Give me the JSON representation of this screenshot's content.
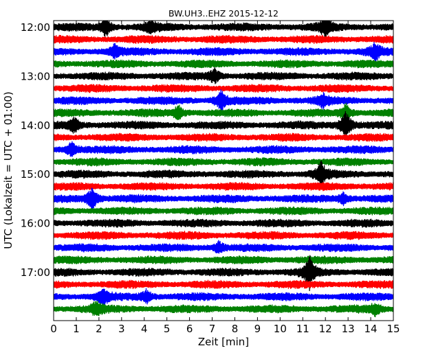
{
  "chart_data": {
    "type": "line",
    "title": "BW.UH3..EHZ 2015-12-12",
    "xlabel": "Zeit  [min]",
    "ylabel": "UTC (Lokalzeit = UTC + 01:00)",
    "xlim": [
      0,
      15
    ],
    "x_ticks": [
      "0",
      "1",
      "2",
      "3",
      "4",
      "5",
      "6",
      "7",
      "8",
      "9",
      "10",
      "11",
      "12",
      "13",
      "14",
      "15"
    ],
    "y_ticks": [
      "12:00",
      "13:00",
      "14:00",
      "15:00",
      "16:00",
      "17:00"
    ],
    "trace_start": "12:00",
    "trace_interval_min": 15,
    "trace_count": 24,
    "trace_colors": [
      "#000000",
      "#ff0000",
      "#0000ff",
      "#008000"
    ],
    "grid": false,
    "events": [
      {
        "trace": 0,
        "minute": 2.3,
        "amp": 1.2
      },
      {
        "trace": 0,
        "minute": 12.0,
        "amp": 1.3
      },
      {
        "trace": 0,
        "minute": 4.3,
        "amp": 0.7
      },
      {
        "trace": 2,
        "minute": 14.2,
        "amp": 1.0
      },
      {
        "trace": 2,
        "minute": 2.7,
        "amp": 0.7
      },
      {
        "trace": 4,
        "minute": 7.1,
        "amp": 0.9
      },
      {
        "trace": 6,
        "minute": 7.4,
        "amp": 1.3
      },
      {
        "trace": 6,
        "minute": 11.9,
        "amp": 0.8
      },
      {
        "trace": 7,
        "minute": 5.5,
        "amp": 0.9
      },
      {
        "trace": 7,
        "minute": 12.9,
        "amp": 1.1
      },
      {
        "trace": 8,
        "minute": 0.9,
        "amp": 0.9
      },
      {
        "trace": 8,
        "minute": 12.9,
        "amp": 2.0
      },
      {
        "trace": 10,
        "minute": 0.8,
        "amp": 1.0
      },
      {
        "trace": 12,
        "minute": 11.8,
        "amp": 1.6
      },
      {
        "trace": 14,
        "minute": 1.7,
        "amp": 1.5
      },
      {
        "trace": 14,
        "minute": 12.8,
        "amp": 0.7
      },
      {
        "trace": 18,
        "minute": 7.3,
        "amp": 0.7
      },
      {
        "trace": 20,
        "minute": 11.3,
        "amp": 2.0
      },
      {
        "trace": 22,
        "minute": 2.2,
        "amp": 1.0
      },
      {
        "trace": 22,
        "minute": 4.1,
        "amp": 0.8
      },
      {
        "trace": 23,
        "minute": 1.9,
        "amp": 0.9
      },
      {
        "trace": 23,
        "minute": 14.2,
        "amp": 0.7
      }
    ]
  }
}
